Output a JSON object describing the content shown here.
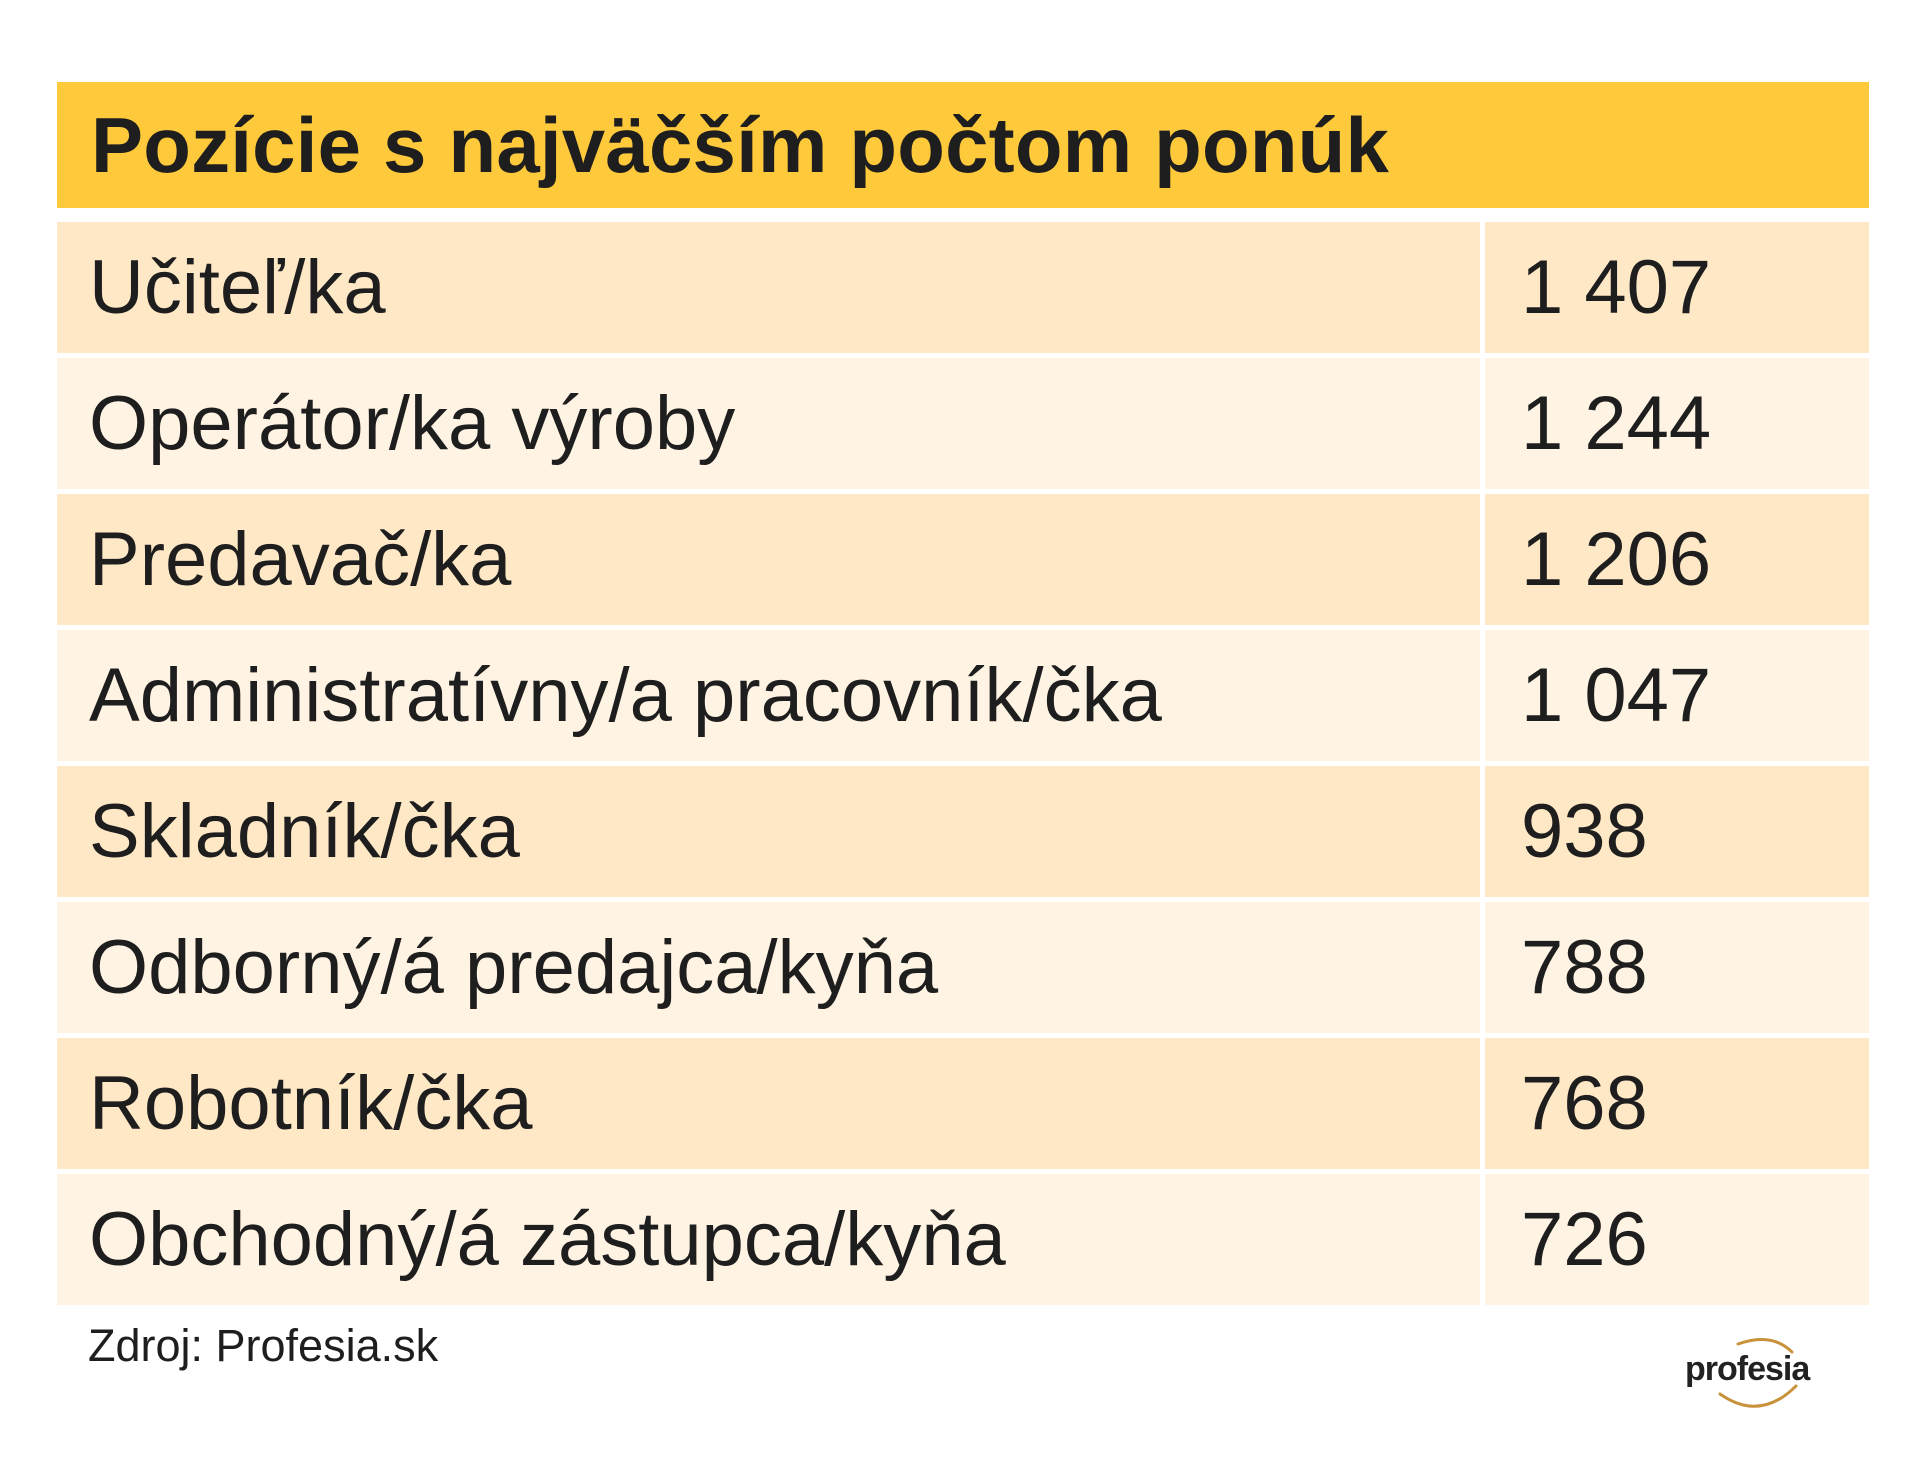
{
  "chart_data": {
    "type": "table",
    "title": "Pozície s najväčším počtom ponúk",
    "rows": [
      {
        "label": "Učiteľ/ka",
        "value": "1 407"
      },
      {
        "label": "Operátor/ka výroby",
        "value": "1 244"
      },
      {
        "label": "Predavač/ka",
        "value": "1 206"
      },
      {
        "label": "Administratívny/a pracovník/čka",
        "value": "1 047"
      },
      {
        "label": "Skladník/čka",
        "value": "938"
      },
      {
        "label": "Odborný/á predajca/kyňa",
        "value": "788"
      },
      {
        "label": "Robotník/čka",
        "value": "768"
      },
      {
        "label": "Obchodný/á zástupca/kyňa",
        "value": "726"
      }
    ],
    "source": "Zdroj: Profesia.sk"
  },
  "logo": {
    "text": "profesia",
    "icon": "profesia-logo-arc"
  },
  "colors": {
    "header": "#ffc93c",
    "row_dark": "#ffe8c6",
    "row_light": "#fff4e3",
    "text": "#1e1e1e",
    "logo_arc": "#c8923a"
  }
}
